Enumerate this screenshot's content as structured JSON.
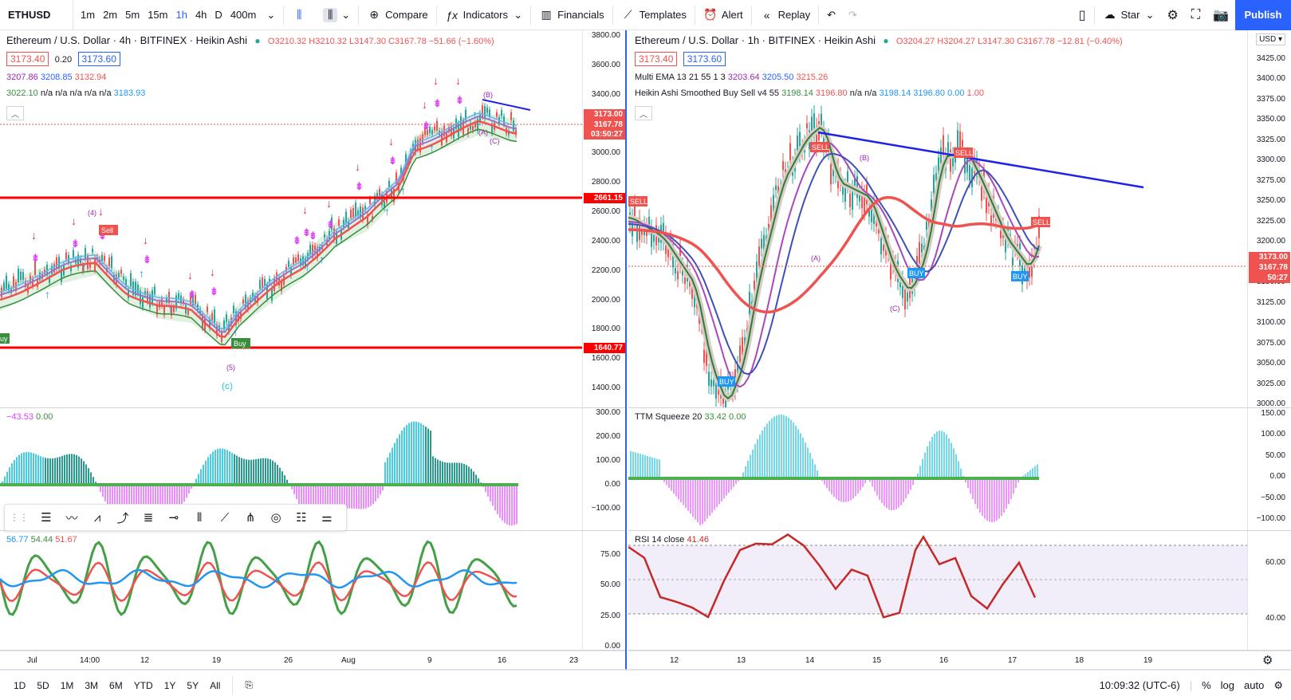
{
  "toolbar": {
    "symbol": "ETHUSD",
    "intervals": [
      "1m",
      "2m",
      "5m",
      "15m",
      "1h",
      "4h",
      "D",
      "400m"
    ],
    "active_interval": "1h",
    "compare": "Compare",
    "indicators": "Indicators",
    "financials": "Financials",
    "templates": "Templates",
    "alert": "Alert",
    "replay": "Replay",
    "layout_name": "Star",
    "publish": "Publish"
  },
  "left_chart": {
    "title": "Ethereum / U.S. Dollar · 4h · BITFINEX · Heikin Ashi",
    "ohlc": "O3210.32 H3210.32 L3147.30 C3167.78 −51.66 (−1.60%)",
    "bid": "3173.40",
    "spread": "0.20",
    "ask": "3173.60",
    "ind1": [
      "3207.86",
      "3208.85",
      "3132.94"
    ],
    "ind2": [
      "3022.10",
      "n/a",
      "n/a",
      "n/a",
      "n/a",
      "n/a",
      "3183.93"
    ],
    "price_axis": [
      "3800.00",
      "3600.00",
      "3400.00",
      "3200.00",
      "3000.00",
      "2800.00",
      "2600.00",
      "2400.00",
      "2200.00",
      "2000.00",
      "1800.00",
      "1600.00",
      "1400.00"
    ],
    "last_price": "3173.00",
    "close_price": "3167.78",
    "countdown": "03:50:27",
    "line_upper": "2661.15",
    "line_lower": "1640.77",
    "wave_labels": [
      "(4)",
      "(5)",
      "(c)",
      "(B)",
      "(A)",
      "(C)"
    ],
    "sell_label": "Sell",
    "buy_label": "Buy",
    "osc_value1": "−43.53",
    "osc_value2": "0.00",
    "osc_axis": [
      "300.00",
      "200.00",
      "100.00",
      "0.00",
      "−100.00"
    ],
    "rsi_values": [
      "56.77",
      "54.44",
      "51.67"
    ],
    "rsi_axis": [
      "75.00",
      "50.00",
      "25.00",
      "0.00"
    ],
    "x_axis": [
      "Jul",
      "14:00",
      "12",
      "19",
      "26",
      "Aug",
      "9",
      "16",
      "23"
    ]
  },
  "right_chart": {
    "title": "Ethereum / U.S. Dollar · 1h · BITFINEX · Heikin Ashi",
    "ohlc": "O3204.27 H3204.27 L3147.30 C3167.78 −12.81 (−0.40%)",
    "bid": "3173.40",
    "ask": "3173.60",
    "ema_label": "Multi EMA 13 21 55 1 3",
    "ema_values": [
      "3203.64",
      "3205.50",
      "3215.26"
    ],
    "ha_label": "Heikin Ashi Smoothed Buy Sell v4 55",
    "ha_values": [
      "3198.14",
      "3196.80",
      "n/a",
      "n/a",
      "3198.14",
      "3196.80",
      "0.00",
      "1.00"
    ],
    "currency": "USD",
    "price_axis": [
      "3425.00",
      "3400.00",
      "3375.00",
      "3350.00",
      "3325.00",
      "3300.00",
      "3275.00",
      "3250.00",
      "3225.00",
      "3200.00",
      "3175.00",
      "3150.00",
      "3125.00",
      "3100.00",
      "3075.00",
      "3050.00",
      "3025.00",
      "3000.00"
    ],
    "last_price": "3173.00",
    "close_price": "3167.78",
    "countdown": "50:27",
    "sell_label": "SELL",
    "buy_label": "BUY",
    "wave_labels": [
      "(A)",
      "(B)",
      "(C)"
    ],
    "ttm_label": "TTM Squeeze 20",
    "ttm_values": [
      "33.42",
      "0.00"
    ],
    "ttm_axis": [
      "150.00",
      "100.00",
      "50.00",
      "0.00",
      "−50.00",
      "−100.00"
    ],
    "rsi_label": "RSI 14 close",
    "rsi_value": "41.46",
    "rsi_axis": [
      "60.00",
      "40.00"
    ],
    "x_axis": [
      "12",
      "13",
      "14",
      "15",
      "16",
      "17",
      "18",
      "19"
    ]
  },
  "bottom": {
    "ranges": [
      "1D",
      "5D",
      "1M",
      "3M",
      "6M",
      "YTD",
      "1Y",
      "5Y",
      "All"
    ],
    "time": "10:09:32 (UTC-6)",
    "percent": "%",
    "log": "log",
    "auto": "auto"
  },
  "colors": {
    "accent": "#2962ff",
    "up": "#26a69a",
    "down": "#ef5350",
    "hline": "#ff0000",
    "buy_arrow": "#2196f3",
    "sell_arrow": "#e91e63",
    "magenta": "#e040fb"
  }
}
